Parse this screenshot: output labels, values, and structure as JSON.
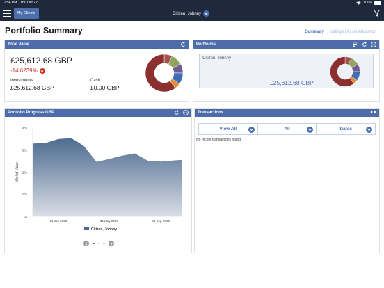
{
  "status_bar": {
    "time": "12:56 PM",
    "date": "Thu Oct 22",
    "battery": "100%"
  },
  "nav": {
    "my_clients": "My Clients",
    "client": "Citizen, Johnny"
  },
  "page": {
    "title": "Portfolio Summary",
    "subnav": [
      "Summary",
      "Holdings",
      "Asset Allocation"
    ],
    "subnav_active": "Summary"
  },
  "total_value": {
    "header": "Total Value",
    "amount": "£25,612.68 GBP",
    "change": "-14.6239%",
    "investments_label": "Investments",
    "investments_value": "£25,612.68 GBP",
    "cash_label": "Cash",
    "cash_value": "£0.00 GBP"
  },
  "portfolios": {
    "header": "Portfolios",
    "items": [
      {
        "name": "Citizen, Johnny",
        "value": "£25,612.68 GBP"
      }
    ]
  },
  "allocation_donut": {
    "colors": [
      "#a3544e",
      "#8ea55a",
      "#6d5a96",
      "#3f6fb0",
      "#e68a3a",
      "#8b2f2f"
    ],
    "fractions": [
      0.07,
      0.1,
      0.08,
      0.1,
      0.05,
      0.6
    ]
  },
  "progress": {
    "header": "Portfolio Progress GBP",
    "pager": {
      "pages": 4,
      "current": 1
    }
  },
  "chart_data": {
    "type": "area",
    "title": "",
    "xlabel": "",
    "ylabel": "Market Value",
    "x": [
      "2019-11-01",
      "2019-12-01",
      "2020-01-01",
      "2020-02-01",
      "2020-03-01",
      "2020-04-01",
      "2020-05-01",
      "2020-06-01",
      "2020-07-01",
      "2020-08-01",
      "2020-09-01",
      "2020-10-01",
      "2020-10-22"
    ],
    "x_ticks": [
      "01 Jan 2020",
      "01 May 2020",
      "01 Sep 2020"
    ],
    "y_ticks": [
      "0k",
      "10k",
      "20k",
      "30k",
      "40k"
    ],
    "ylim": [
      0,
      40000
    ],
    "series": [
      {
        "name": "Citizen, Johnny",
        "values": [
          33000,
          33200,
          35000,
          35400,
          32000,
          24700,
          26000,
          27500,
          28500,
          25200,
          24800,
          25300,
          25600
        ]
      }
    ],
    "color": "#4d6b91",
    "grid": false,
    "legend": "bottom"
  },
  "transactions": {
    "header": "Transactions",
    "filters": [
      "View All",
      "All",
      "Dates"
    ],
    "empty": "No recent transactions found."
  }
}
